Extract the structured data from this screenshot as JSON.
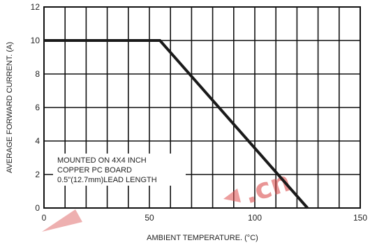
{
  "chart_data": {
    "type": "line",
    "xlabel": "AMBIENT TEMPERATURE. (°C)",
    "ylabel": "AVERAGE FORWARD CURRENT. (A)",
    "xlim": [
      0,
      150
    ],
    "ylim": [
      0,
      12
    ],
    "x_ticks": [
      "0",
      "50",
      "100",
      "150"
    ],
    "y_ticks": [
      "0",
      "2",
      "4",
      "6",
      "8",
      "10",
      "12"
    ],
    "x_grid_step": 10,
    "y_grid_step": 2,
    "grid": true,
    "series": [
      {
        "x": [
          0,
          55,
          125
        ],
        "y": [
          10,
          10,
          0
        ],
        "color": "#1a1a1a"
      }
    ],
    "annotation_lines": [
      "MOUNTED ON 4X4 INCH",
      "COPPER PC BOARD",
      "0.5\"(12.7mm)LEAD LENGTH"
    ]
  },
  "watermark": {
    "text": ".cn"
  }
}
